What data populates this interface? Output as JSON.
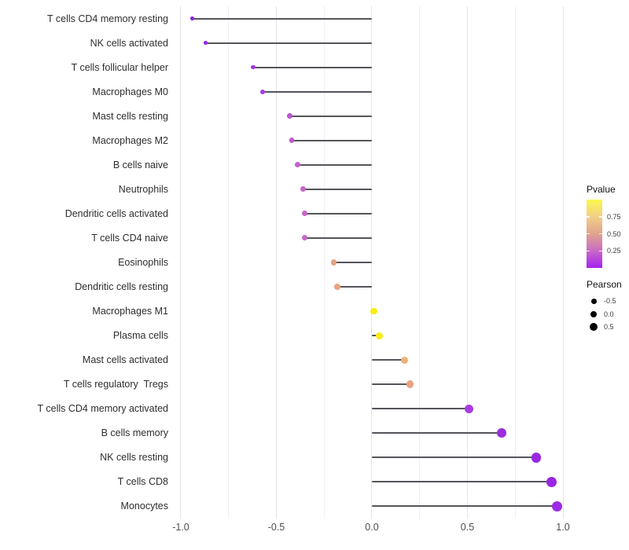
{
  "chart_data": {
    "type": "lollipop",
    "title": "",
    "xlabel": "",
    "ylabel": "",
    "xlim": [
      -1.0329,
      1.0576
    ],
    "x_ticks": [
      -1.0,
      -0.5,
      0.0,
      0.5,
      1.0
    ],
    "x_tick_labels": [
      "-1.0",
      "-0.5",
      "0.0",
      "0.5",
      "1.0"
    ],
    "minor_grid_step": 0.25,
    "baseline": 0.0,
    "grid": "vertical-only",
    "legend_position": "right",
    "points": [
      {
        "label": "T cells CD4 memory resting",
        "pearson": -0.94,
        "pvalue": 0.05,
        "color": "#8E28DD"
      },
      {
        "label": "NK cells activated",
        "pearson": -0.87,
        "pvalue": 0.06,
        "color": "#9229E0"
      },
      {
        "label": "T cells follicular helper",
        "pearson": -0.62,
        "pvalue": 0.1,
        "color": "#A238DF"
      },
      {
        "label": "Macrophages M0",
        "pearson": -0.57,
        "pvalue": 0.12,
        "color": "#A63EDD"
      },
      {
        "label": "Mast cells resting",
        "pearson": -0.43,
        "pvalue": 0.2,
        "color": "#BC55CF"
      },
      {
        "label": "Macrophages M2",
        "pearson": -0.42,
        "pvalue": 0.21,
        "color": "#BE58CE"
      },
      {
        "label": "B cells naive",
        "pearson": -0.39,
        "pvalue": 0.24,
        "color": "#C462CC"
      },
      {
        "label": "Neutrophils",
        "pearson": -0.36,
        "pvalue": 0.25,
        "color": "#C765C9"
      },
      {
        "label": "Dendritic cells activated",
        "pearson": -0.35,
        "pvalue": 0.25,
        "color": "#C765C9"
      },
      {
        "label": "T cells CD4 naive",
        "pearson": -0.35,
        "pvalue": 0.25,
        "color": "#C766C9"
      },
      {
        "label": "Eosinophils",
        "pearson": -0.2,
        "pvalue": 0.55,
        "color": "#E7A37E"
      },
      {
        "label": "Dendritic cells resting",
        "pearson": -0.18,
        "pvalue": 0.56,
        "color": "#E8A57D"
      },
      {
        "label": "Macrophages M1",
        "pearson": 0.01,
        "pvalue": 0.95,
        "color": "#F8EE15"
      },
      {
        "label": "Plasma cells",
        "pearson": 0.04,
        "pvalue": 0.93,
        "color": "#F8ED18"
      },
      {
        "label": "Mast cells activated",
        "pearson": 0.17,
        "pvalue": 0.58,
        "color": "#EFB07C"
      },
      {
        "label": "T cells regulatory  Tregs",
        "pearson": 0.2,
        "pvalue": 0.52,
        "color": "#E8A182"
      },
      {
        "label": "T cells CD4 memory activated",
        "pearson": 0.51,
        "pvalue": 0.13,
        "color": "#A93BE2"
      },
      {
        "label": "B cells memory",
        "pearson": 0.68,
        "pvalue": 0.07,
        "color": "#9C2EDE"
      },
      {
        "label": "NK cells resting",
        "pearson": 0.86,
        "pvalue": 0.05,
        "color": "#9A28E0"
      },
      {
        "label": "T cells CD8",
        "pearson": 0.94,
        "pvalue": 0.04,
        "color": "#9727E0"
      },
      {
        "label": "Monocytes",
        "pearson": 0.97,
        "pvalue": 0.03,
        "color": "#9D2BE5"
      }
    ],
    "legend": {
      "pvalue": {
        "title": "Pvalue",
        "range": [
          0,
          1
        ],
        "ticks": [
          {
            "label": "0.75",
            "value": 0.75
          },
          {
            "label": "0.50",
            "value": 0.5
          },
          {
            "label": "0.25",
            "value": 0.25
          }
        ],
        "gradient_top_to_bottom": [
          "#FBF84E",
          "#F2CF87",
          "#E0A48F",
          "#C869C6",
          "#A621F0"
        ]
      },
      "pearson": {
        "title": "Pearson",
        "dot_color": "#000000",
        "items": [
          {
            "label": "-0.5",
            "size": 7
          },
          {
            "label": "0.0",
            "size": 8.5
          },
          {
            "label": "0.5",
            "size": 10
          }
        ]
      }
    },
    "styles": {
      "segment_color": "#54555A",
      "major_grid_color": "#E4E4E4",
      "minor_grid_color": "#F0F0F0",
      "axis_text_color": "#4D4D4D",
      "category_text_color": "#2E2E2E",
      "background": "#FFFFFF"
    }
  }
}
